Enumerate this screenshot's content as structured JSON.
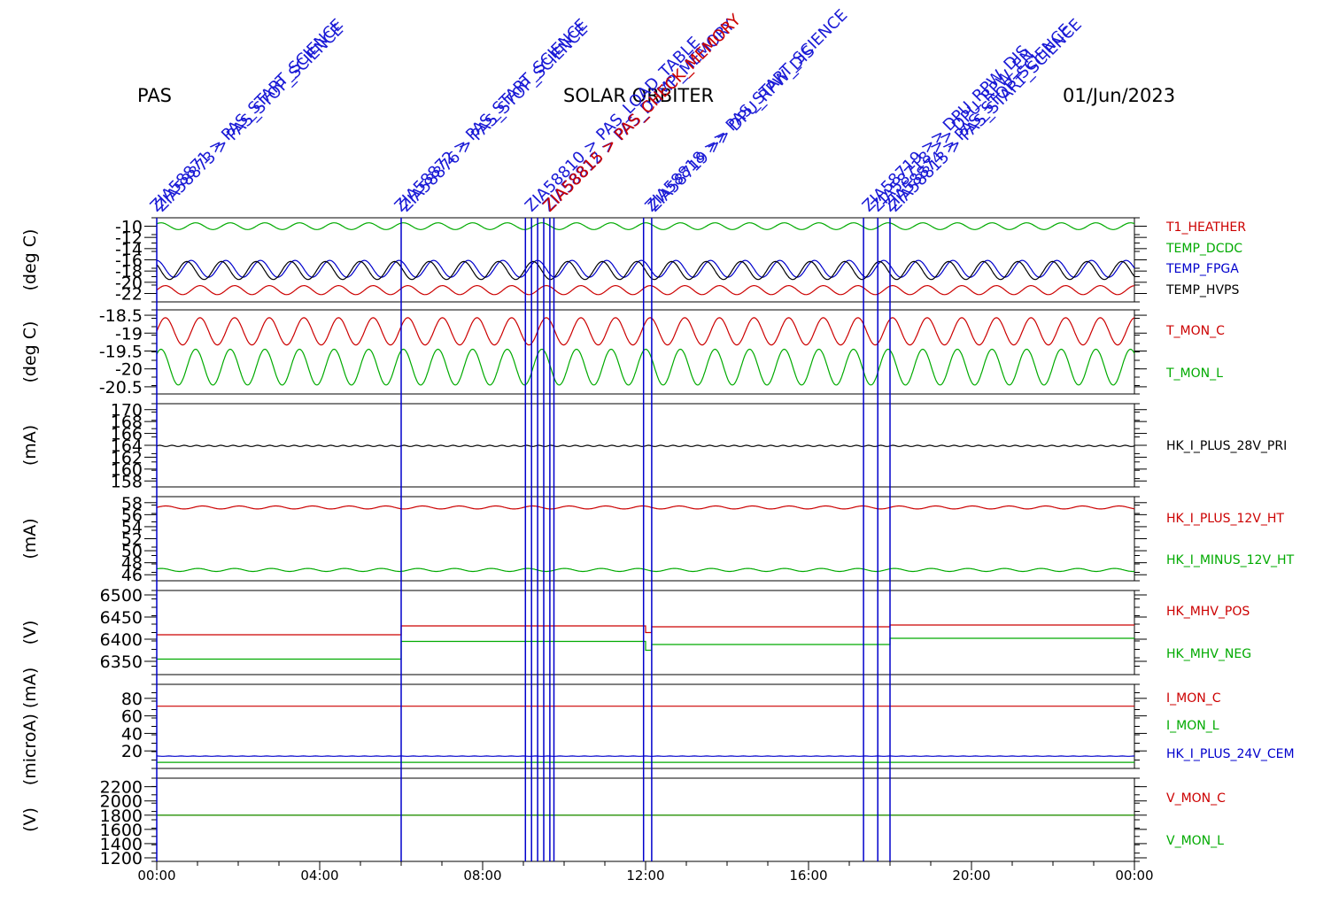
{
  "header": {
    "left": "PAS",
    "center": "SOLAR ORBITER",
    "right": "01/Jun/2023"
  },
  "colors": {
    "red": "#cc0000",
    "green": "#00aa00",
    "blue": "#0000cc",
    "black": "#000000",
    "annot": "#1a1ad6"
  },
  "chart_data": {
    "type": "line",
    "x_range_hours": [
      0,
      24
    ],
    "x_ticks": [
      "00:00",
      "04:00",
      "08:00",
      "12:00",
      "16:00",
      "20:00",
      "00:00"
    ],
    "command_lines_hours": [
      0.0,
      6.0,
      9.05,
      9.2,
      9.35,
      9.5,
      9.65,
      9.75,
      11.95,
      12.15,
      17.35,
      17.7,
      18.0
    ],
    "annotations": [
      {
        "t": 0.0,
        "text": "ZIA58871 > PAS_START_SCIENCE",
        "color": "blue"
      },
      {
        "t": 0.0,
        "text": "ZIA58873 > PAS_STOP_SCIENCE",
        "color": "blue"
      },
      {
        "t": 6.0,
        "text": "ZIA58872 > PAS_START_SCIENCE",
        "color": "blue"
      },
      {
        "t": 6.0,
        "text": "ZIA58876 > PAS_STOP_SCIENCE",
        "color": "blue"
      },
      {
        "t": 9.2,
        "text": "ZIA58810 > PAS_LOAD_TABLE",
        "color": "blue"
      },
      {
        "t": 9.5,
        "text": "ZIA58812 > PAS_DUMP_MEMORY",
        "color": "blue"
      },
      {
        "t": 9.65,
        "text": "ZIA58815 > PAS_CHECK_MEMORY",
        "color": "red"
      },
      {
        "t": 12.1,
        "text": "ZIA58719 >> DPU_RPW_DIS",
        "color": "blue"
      },
      {
        "t": 12.15,
        "text": "ZIA58818 >> PAS_START_SCIENCE",
        "color": "blue"
      },
      {
        "t": 17.35,
        "text": "ZIA58719 >> DPU_RPW_DIS",
        "color": "blue"
      },
      {
        "t": 17.7,
        "text": "ZIA58718 >> DPU_RPW_EN",
        "color": "blue"
      },
      {
        "t": 18.0,
        "text": "ZIA58813 > PAS_START_SCIENCE",
        "color": "blue"
      },
      {
        "t": 18.0,
        "text": "ZIA58874 > PAS_STOP_SCIENCE",
        "color": "blue"
      }
    ],
    "panels": [
      {
        "ylabel": "(deg C)",
        "ylim": [
          -23.5,
          -8.5
        ],
        "ticks": [
          -10,
          -12,
          -14,
          -16,
          -18,
          -20,
          -22
        ],
        "series": [
          {
            "name": "T1_HEATHER",
            "color": "red",
            "base": -21.4,
            "amp": 0.8,
            "period": 0.85
          },
          {
            "name": "TEMP_DCDC",
            "color": "green",
            "base": -10.0,
            "amp": 0.6,
            "period": 0.85
          },
          {
            "name": "TEMP_FPGA",
            "color": "blue",
            "base": -17.6,
            "amp": 1.5,
            "period": 0.85
          },
          {
            "name": "TEMP_HVPS",
            "color": "black",
            "base": -17.9,
            "amp": 1.6,
            "period": 0.85
          }
        ]
      },
      {
        "ylabel": "(deg C)",
        "ylim": [
          -20.7,
          -18.35
        ],
        "ticks": [
          -18.5,
          -19.0,
          -19.5,
          -20.0,
          -20.5
        ],
        "series": [
          {
            "name": "T_MON_C",
            "color": "red",
            "base": -18.95,
            "amp": 0.38,
            "period": 0.85
          },
          {
            "name": "T_MON_L",
            "color": "green",
            "base": -19.95,
            "amp": 0.5,
            "period": 0.85
          }
        ]
      },
      {
        "ylabel": "(mA)",
        "ylim": [
          157,
          171
        ],
        "ticks": [
          170,
          168,
          166,
          164,
          162,
          160,
          158
        ],
        "series": [
          {
            "name": "HK_I_PLUS_28V_PRI",
            "color": "black",
            "base": 163.9,
            "amp": 0.1,
            "period": 0.3
          }
        ]
      },
      {
        "ylabel": "(mA)",
        "ylim": [
          45,
          59
        ],
        "ticks": [
          58,
          56,
          54,
          52,
          50,
          48,
          46
        ],
        "series": [
          {
            "name": "HK_I_PLUS_12V_HT",
            "color": "red",
            "base": 57.2,
            "amp": 0.25,
            "period": 0.9
          },
          {
            "name": "HK_I_MINUS_12V_HT",
            "color": "green",
            "base": 46.8,
            "amp": 0.25,
            "period": 0.9
          }
        ]
      },
      {
        "ylabel": "(V)",
        "ylim": [
          6320,
          6510
        ],
        "ticks": [
          6500,
          6450,
          6400,
          6350
        ],
        "series": [
          {
            "name": "HK_MHV_POS",
            "color": "red",
            "steps": [
              [
                0,
                6410
              ],
              [
                6.0,
                6430
              ],
              [
                12.0,
                6415
              ],
              [
                12.15,
                6428
              ],
              [
                18.0,
                6432
              ]
            ]
          },
          {
            "name": "HK_MHV_NEG",
            "color": "green",
            "steps": [
              [
                0,
                6355
              ],
              [
                6.0,
                6395
              ],
              [
                12.0,
                6375
              ],
              [
                12.15,
                6388
              ],
              [
                18.0,
                6402
              ]
            ]
          }
        ]
      },
      {
        "ylabel": "(microA) (mA)",
        "ylim": [
          0,
          96
        ],
        "ticks": [
          80,
          60,
          40,
          20
        ],
        "series": [
          {
            "name": "I_MON_C",
            "color": "red",
            "base": 71,
            "amp": 0,
            "period": 1
          },
          {
            "name": "I_MON_L",
            "color": "green",
            "base": 7,
            "amp": 0,
            "period": 1
          },
          {
            "name": "HK_I_PLUS_24V_CEM",
            "color": "blue",
            "base": 14,
            "amp": 0.2,
            "period": 0.3
          }
        ]
      },
      {
        "ylabel": "(V)",
        "ylim": [
          1150,
          2320
        ],
        "ticks": [
          2200,
          2000,
          1800,
          1600,
          1400,
          1200
        ],
        "series": [
          {
            "name": "V_MON_C",
            "color": "red",
            "base": 1800,
            "amp": 0,
            "period": 1
          },
          {
            "name": "V_MON_L",
            "color": "green",
            "base": 1800,
            "amp": 0,
            "period": 1
          }
        ]
      }
    ]
  }
}
